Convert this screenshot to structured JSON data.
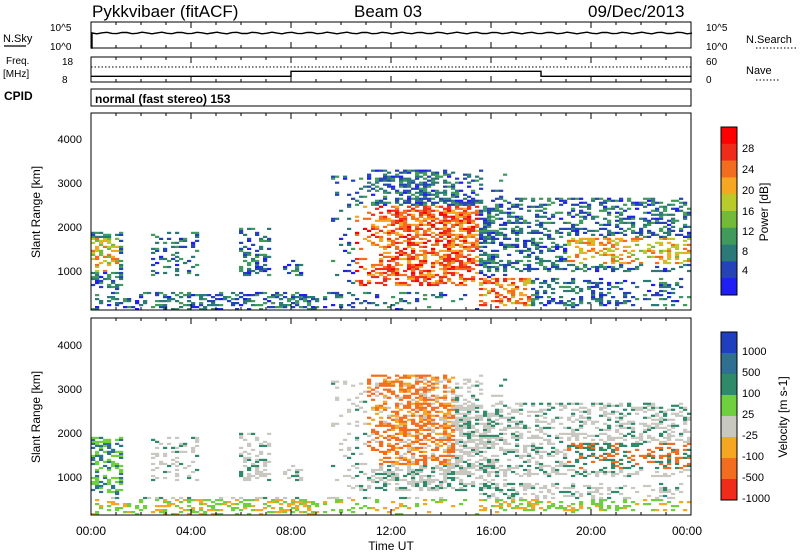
{
  "header": {
    "station": "Pykkvibaer (fitACF)",
    "beam": "Beam 03",
    "date": "09/Dec/2013"
  },
  "strip_nsky": {
    "left_label": "N.Sky",
    "left_ticks": [
      "10^5",
      "10^0"
    ],
    "right_ticks": [
      "10^5",
      "10^0"
    ],
    "right_label": "N.Search",
    "right_style": "dotted"
  },
  "strip_freq": {
    "left_label_top": "Freq.",
    "left_label_unit": "[MHz]",
    "left_ticks": [
      "18",
      "8"
    ],
    "right_ticks": [
      "60",
      "0"
    ],
    "right_label": "Nave",
    "right_style": "dotted"
  },
  "cpid": {
    "label": "CPID",
    "mode_text": "normal (fast stereo) 153"
  },
  "chart_data": [
    {
      "type": "heatmap",
      "title": "",
      "ylabel": "Slant Range [km]",
      "xlabel": "",
      "ylim": [
        180,
        4600
      ],
      "yticks": [
        "1000",
        "2000",
        "3000",
        "4000"
      ],
      "colorbar": {
        "label": "Power [dB]",
        "ticks": [
          "4",
          "8",
          "12",
          "16",
          "20",
          "24",
          "28"
        ],
        "colors": [
          "#1f1ff5",
          "#2443b8",
          "#2b7a78",
          "#3f9a5b",
          "#73b93a",
          "#b8cb2b",
          "#f5a623",
          "#f26d1f",
          "#ef2b1a",
          "#ff0000"
        ]
      }
    },
    {
      "type": "heatmap",
      "title": "",
      "ylabel": "Slant Range [km]",
      "xlabel": "",
      "ylim": [
        180,
        4600
      ],
      "yticks": [
        "1000",
        "2000",
        "3000",
        "4000"
      ],
      "colorbar": {
        "label": "Velocity [m s-1]",
        "ticks": [
          "1000",
          "500",
          "100",
          "25",
          "-25",
          "-100",
          "-500",
          "-1000"
        ],
        "colors": [
          "#1f3fbf",
          "#2f6f8f",
          "#2f8a6a",
          "#6fcf3f",
          "#c8c8c0",
          "#f5a623",
          "#f26d1f",
          "#ef2b1a"
        ]
      }
    }
  ],
  "x_axis": {
    "ticks": [
      "00:00",
      "04:00",
      "08:00",
      "12:00",
      "16:00",
      "20:00",
      "00:00"
    ],
    "label": "Time UT"
  },
  "freq_series": [
    {
      "t": 0,
      "v": 10.3
    },
    {
      "t": 8,
      "v": 10.3
    },
    {
      "t": 8,
      "v": 12.3
    },
    {
      "t": 18,
      "v": 12.3
    },
    {
      "t": 18,
      "v": 10.3
    },
    {
      "t": 24,
      "v": 10.3
    }
  ]
}
